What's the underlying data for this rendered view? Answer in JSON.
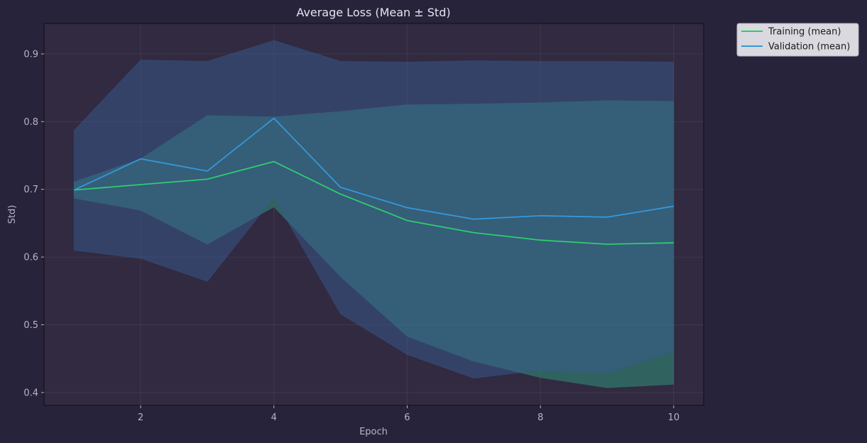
{
  "chart_data": {
    "type": "line",
    "title": "Average Loss (Mean ± Std)",
    "xlabel": "Epoch",
    "ylabel": "Std)",
    "xlim": [
      0.55,
      10.45
    ],
    "ylim": [
      0.381,
      0.945
    ],
    "x_ticks": [
      2,
      4,
      6,
      8,
      10
    ],
    "y_ticks": [
      0.4,
      0.5,
      0.6,
      0.7,
      0.8,
      0.9
    ],
    "grid": true,
    "legend_position": "outside-top-right",
    "x": [
      1,
      2,
      3,
      4,
      5,
      6,
      7,
      8,
      9,
      10
    ],
    "series": [
      {
        "name": "Training (mean)",
        "color": "#2ecc71",
        "band_color": "#2f8f7a",
        "mean": [
          0.699,
          0.707,
          0.715,
          0.741,
          0.693,
          0.654,
          0.636,
          0.625,
          0.619,
          0.621
        ],
        "upper": [
          0.711,
          0.745,
          0.809,
          0.807,
          0.815,
          0.825,
          0.826,
          0.828,
          0.831,
          0.83
        ],
        "lower": [
          0.687,
          0.669,
          0.619,
          0.674,
          0.571,
          0.483,
          0.446,
          0.422,
          0.407,
          0.412
        ]
      },
      {
        "name": "Validation (mean)",
        "color": "#3498db",
        "band_color": "#3a5a8f",
        "mean": [
          0.699,
          0.745,
          0.727,
          0.805,
          0.703,
          0.673,
          0.656,
          0.661,
          0.659,
          0.675
        ],
        "upper": [
          0.787,
          0.891,
          0.889,
          0.92,
          0.889,
          0.888,
          0.89,
          0.889,
          0.889,
          0.888
        ],
        "lower": [
          0.61,
          0.598,
          0.564,
          0.688,
          0.516,
          0.456,
          0.421,
          0.433,
          0.428,
          0.461
        ]
      }
    ]
  }
}
